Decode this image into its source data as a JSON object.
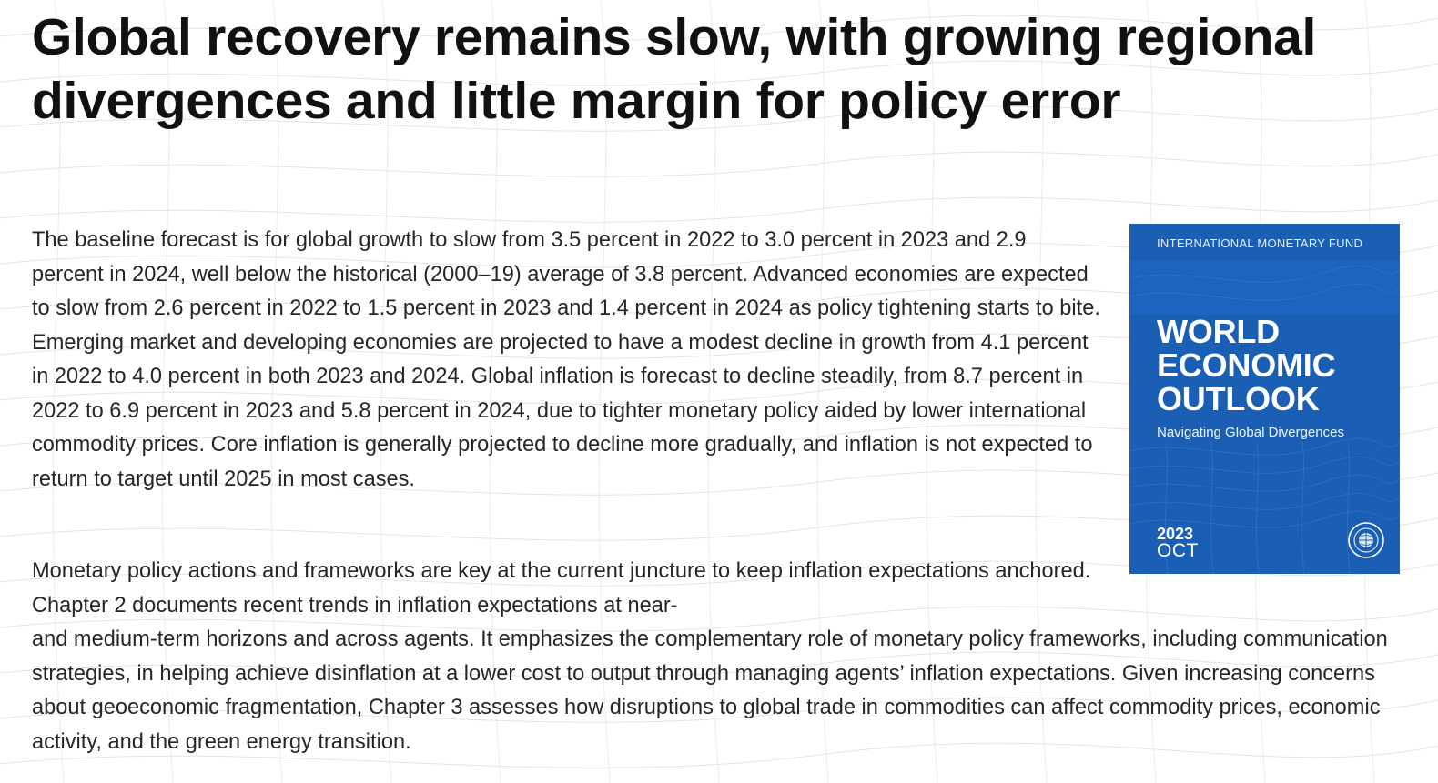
{
  "headline": "Global recovery remains slow, with growing regional divergences and little margin for policy error",
  "paragraphs": [
    "The baseline forecast is for global growth to slow from 3.5 percent in 2022 to 3.0 percent in 2023 and 2.9 percent in 2024, well below the historical (2000–19) average of 3.8 percent. Advanced economies are expected to slow from 2.6 percent in 2022 to 1.5 percent in 2023 and 1.4 percent in 2024 as policy tightening starts to bite. Emerging market and developing economies are projected to have a modest decline in growth from 4.1 percent in 2022 to 4.0 percent in both 2023 and 2024. Global inflation is forecast to decline steadily, from 8.7 percent in 2022 to 6.9 percent in 2023 and 5.8 percent in 2024, due to tighter monetary policy aided by lower international commodity prices. Core inflation is generally projected to decline more gradually, and inflation is not expected to return to target until 2025 in most cases.",
    "Monetary policy actions and frameworks are key at the current juncture to keep inflation expectations anchored. Chapter 2 documents recent trends in inflation expectations at near-",
    "and medium-term horizons and across agents. It emphasizes the complementary role of monetary policy frameworks, including communication strategies, in helping achieve disinflation at a lower cost to output through managing agents’ inflation expectations. Given increasing concerns about geoeconomic fragmentation, Chapter 3 assesses how disruptions to global trade in commodities can affect commodity prices, economic activity, and the green energy transition."
  ],
  "cover": {
    "organization": "INTERNATIONAL MONETARY FUND",
    "title_lines": [
      "WORLD",
      "ECONOMIC",
      "OUTLOOK"
    ],
    "subtitle": "Navigating Global Divergences",
    "year": "2023",
    "month": "OCT",
    "seal_icon": "imf-seal-icon",
    "background_color": "#1a5fb4"
  }
}
